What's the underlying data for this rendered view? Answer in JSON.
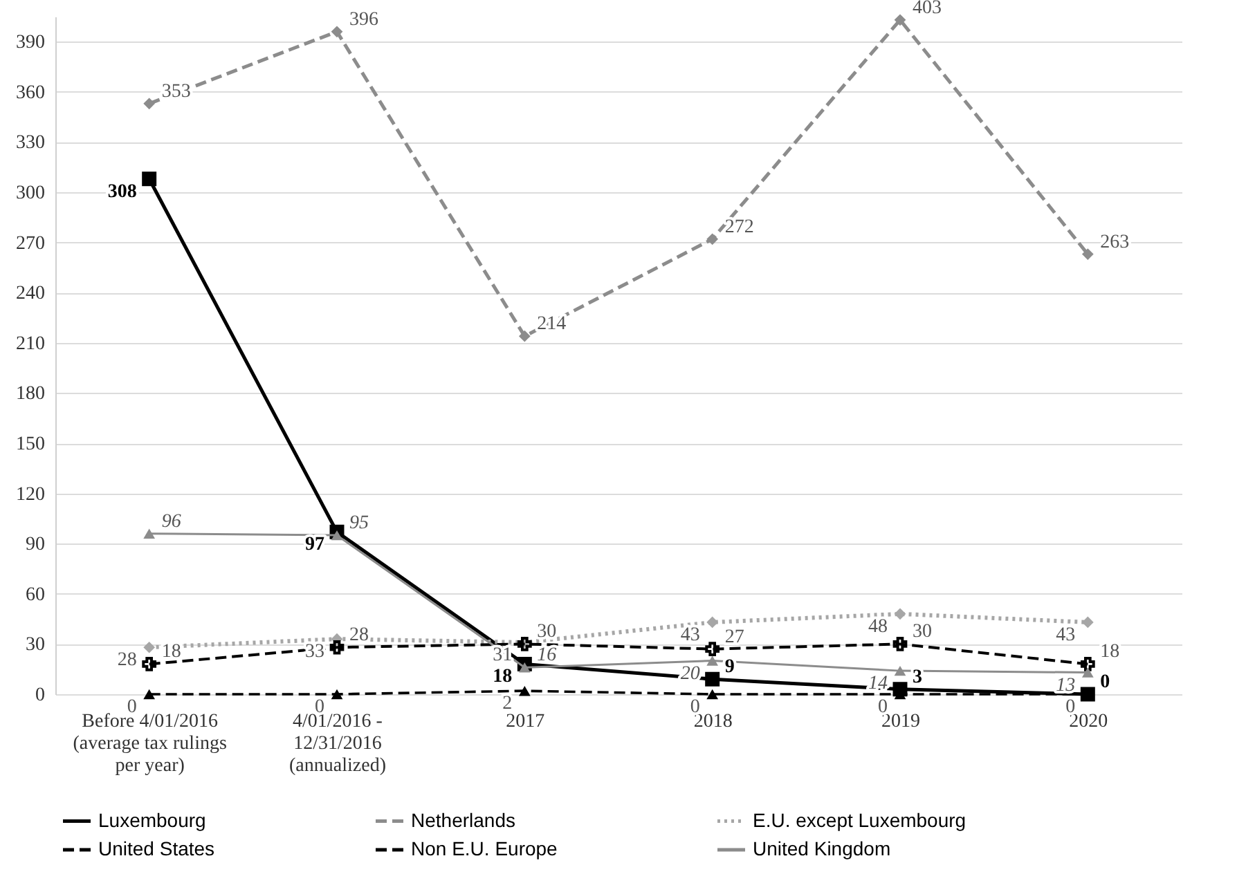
{
  "chart_data": {
    "type": "line",
    "categories": [
      "Before 4/01/2016 (average tax rulings per year)",
      "4/01/2016 - 12/31/2016 (annualized)",
      "2017",
      "2018",
      "2019",
      "2020"
    ],
    "series": [
      {
        "name": "Luxembourg",
        "color": "#000000",
        "values": [
          308,
          97,
          18,
          9,
          3,
          0
        ],
        "marker": "square",
        "line_style": "solid"
      },
      {
        "name": "Netherlands",
        "color": "#8c8c8c",
        "values": [
          353,
          396,
          214,
          272,
          403,
          263
        ],
        "marker": "diamond",
        "line_style": "dashed"
      },
      {
        "name": "E.U. except Luxembourg",
        "color": "#a6a6a6",
        "values": [
          28,
          33,
          31,
          43,
          48,
          43
        ],
        "marker": "diamond",
        "line_style": "dotted"
      },
      {
        "name": "United States",
        "color": "#000000",
        "values": [
          18,
          28,
          30,
          27,
          30,
          18
        ],
        "marker": "cross",
        "line_style": "dashed"
      },
      {
        "name": "Non E.U. Europe",
        "color": "#000000",
        "values": [
          0,
          0,
          2,
          0,
          0,
          0
        ],
        "marker": "triangle",
        "line_style": "dashed"
      },
      {
        "name": "United Kingdom",
        "color": "#8c8c8c",
        "values": [
          96,
          95,
          16,
          20,
          14,
          13
        ],
        "marker": "triangle",
        "line_style": "solid"
      }
    ],
    "ylim": [
      0,
      405
    ],
    "yticks": [
      0,
      30,
      60,
      90,
      120,
      150,
      180,
      210,
      240,
      270,
      300,
      330,
      360,
      390
    ],
    "grid": "y",
    "legend": "bottom",
    "data_labels": true
  }
}
